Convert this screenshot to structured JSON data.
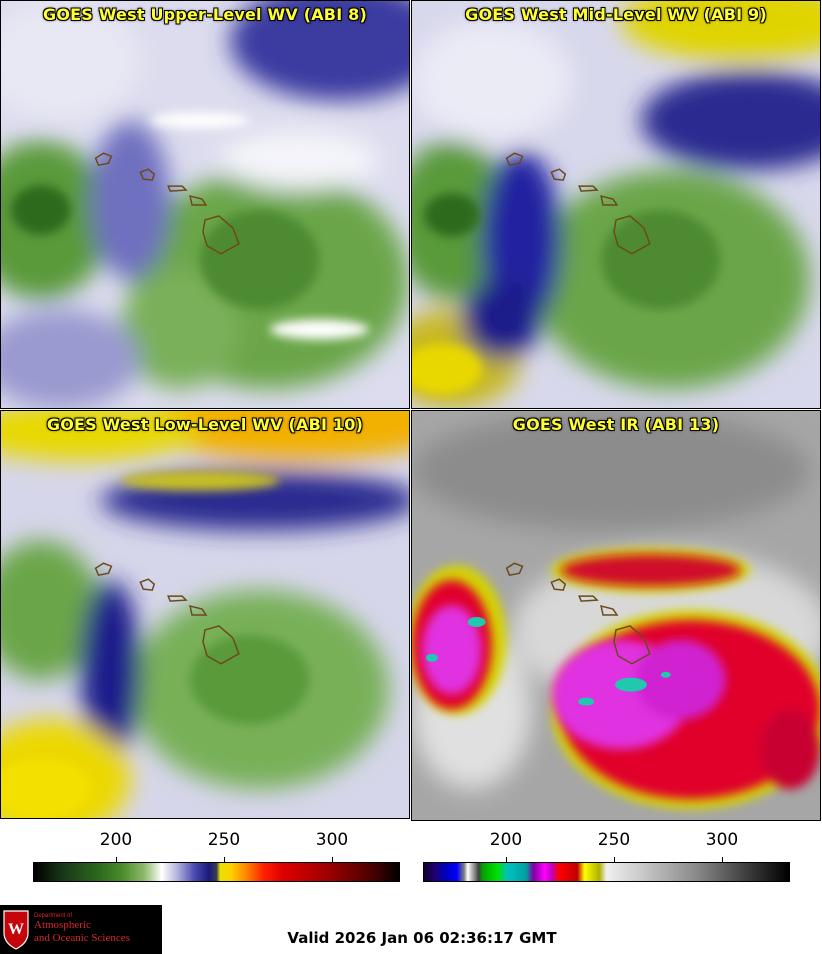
{
  "panels": [
    {
      "title": "GOES West Upper-Level WV (ABI 8)",
      "palette": "wv"
    },
    {
      "title": "GOES West Mid-Level WV (ABI 9)",
      "palette": "wv"
    },
    {
      "title": "GOES West Low-Level WV (ABI 10)",
      "palette": "wv"
    },
    {
      "title": "GOES West IR (ABI 13)",
      "palette": "ir"
    }
  ],
  "colorbars": {
    "left": {
      "tick_labels": [
        "200",
        "250",
        "300"
      ],
      "tick_values": [
        200,
        250,
        300
      ],
      "range": [
        160,
        330
      ]
    },
    "right": {
      "tick_labels": [
        "200",
        "250",
        "300"
      ],
      "tick_values": [
        200,
        250,
        300
      ],
      "range": [
        160,
        330
      ]
    }
  },
  "logo": {
    "line1": "Department of",
    "line2": "Atmospheric",
    "line3": "and Oceanic Sciences",
    "mark": "W"
  },
  "valid_time": "Valid 2026 Jan 06 02:36:17 GMT",
  "colors": {
    "title_text": "#ffff33",
    "wv_green": "#4a8a2a",
    "wv_white": "#f2f2f8",
    "wv_blue": "#1a1a8a",
    "wv_yellow": "#f0e000",
    "ir_red": "#e0002a",
    "ir_magenta": "#e030e0",
    "ir_gray": "#9a9a9a",
    "coastline": "#6b4a1a"
  }
}
